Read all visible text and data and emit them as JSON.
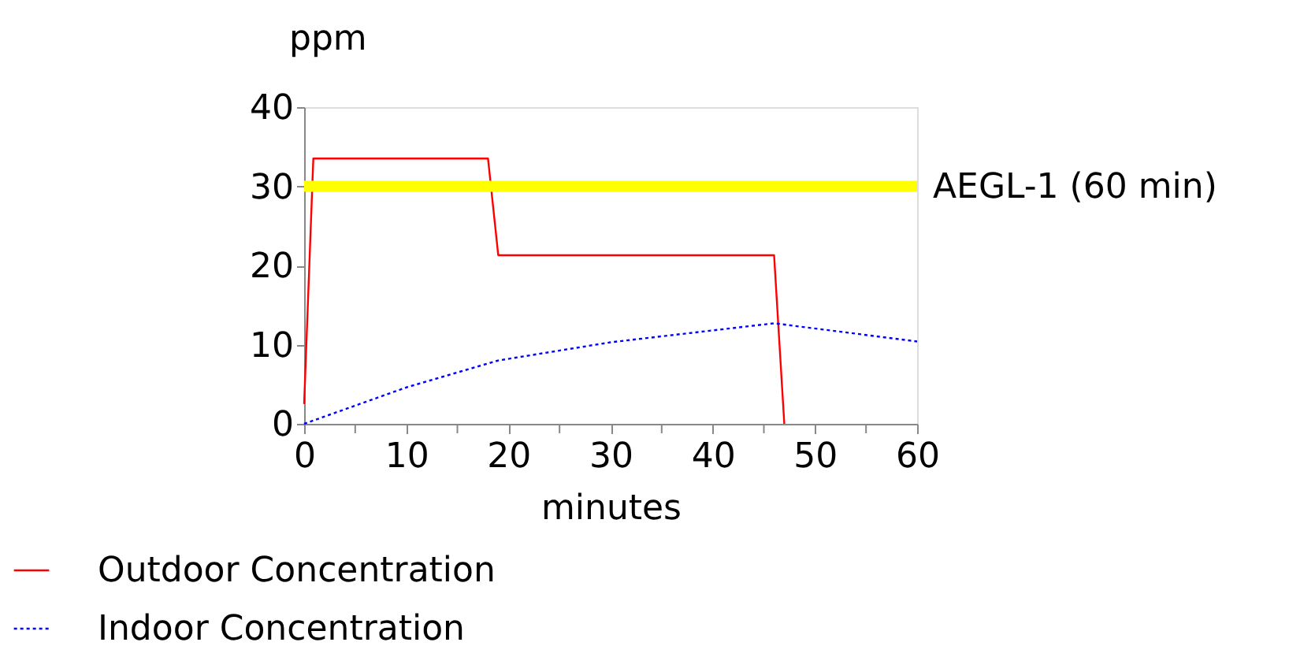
{
  "chart_data": {
    "type": "line",
    "ylabel": "ppm",
    "xlabel": "minutes",
    "xlim": [
      0,
      60
    ],
    "ylim": [
      0,
      40
    ],
    "xticks": [
      0,
      {
        "value": 5,
        "label": null
      },
      10,
      {
        "value": 15,
        "label": null
      },
      20,
      {
        "value": 25,
        "label": null
      },
      30,
      {
        "value": 35,
        "label": null
      },
      40,
      {
        "value": 45,
        "label": null
      },
      50,
      {
        "value": 55,
        "label": null
      },
      60
    ],
    "yticks": [
      0,
      10,
      20,
      30,
      40
    ],
    "grid": false,
    "legend": "bottom left",
    "marker": "none",
    "series": [
      {
        "name": "Outdoor Concentration",
        "color": "#ff0000",
        "line_style": "solid",
        "x": [
          0,
          0.9,
          18,
          19,
          46,
          47
        ],
        "values": [
          2.5,
          33.5,
          33.5,
          21.3,
          21.3,
          0
        ]
      },
      {
        "name": "Indoor Concentration",
        "color": "#0000ff",
        "line_style": "dotted",
        "x": [
          0,
          10,
          19,
          30,
          40,
          46,
          60
        ],
        "values": [
          0,
          4.6,
          8,
          10.3,
          11.8,
          12.7,
          10.4
        ]
      }
    ],
    "ref_lines": [
      {
        "axis": "y",
        "value": 30,
        "label": "AEGL-1 (60 min)",
        "color": "#ffff00",
        "line_style": "solid"
      }
    ]
  }
}
